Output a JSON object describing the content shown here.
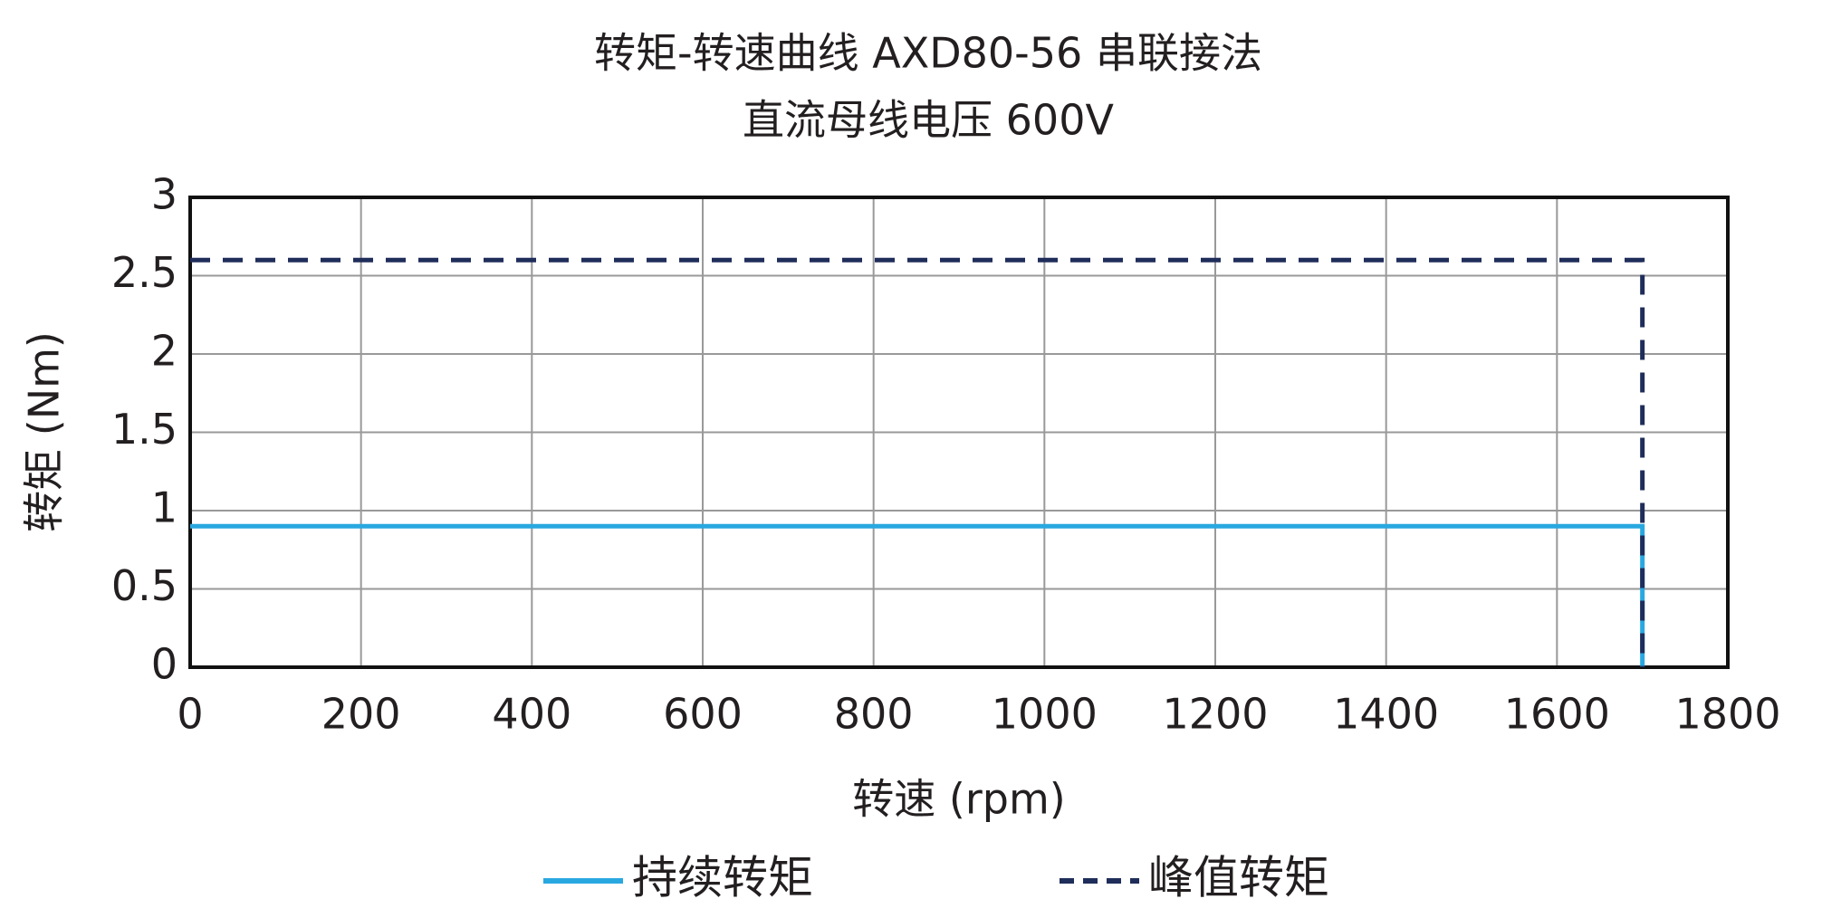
{
  "chart_data": {
    "type": "line",
    "title": "转矩-转速曲线 AXD80-56 串联接法",
    "subtitle": "直流母线电压 600V",
    "x_label": "转速 (rpm)",
    "y_label": "转矩 (Nm)",
    "xlim": [
      0,
      1800
    ],
    "xticks": [
      0,
      200,
      400,
      600,
      800,
      1000,
      1200,
      1400,
      1600,
      1800
    ],
    "ylim": [
      0,
      3
    ],
    "yticks": [
      0,
      0.5,
      1,
      1.5,
      2,
      2.5,
      3
    ],
    "grid": true,
    "legend": "bottom",
    "series": [
      {
        "name": "持续转矩",
        "color": "#29a8e0",
        "line_style": "solid",
        "x": [
          0,
          1700,
          1700
        ],
        "values": [
          0.9,
          0.9,
          0
        ]
      },
      {
        "name": "峰值转矩",
        "color": "#1f2d5a",
        "line_style": "dashed",
        "x": [
          0,
          1700,
          1700
        ],
        "values": [
          2.6,
          2.6,
          0
        ]
      }
    ]
  }
}
